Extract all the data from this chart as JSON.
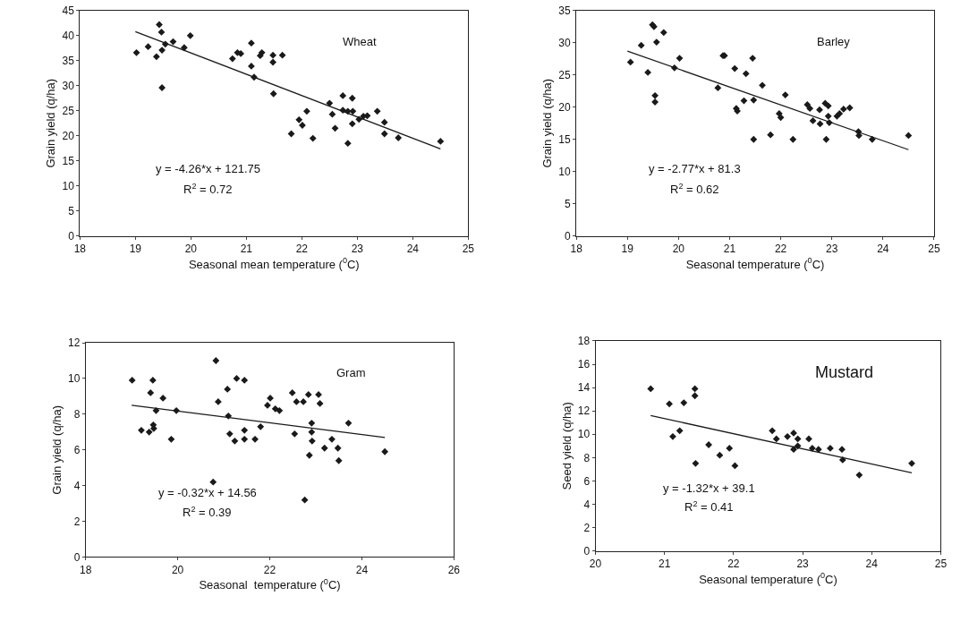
{
  "chart_data": [
    {
      "type": "scatter",
      "xlabel": "Seasonal mean temperature ($^{0}$C)",
      "ylabel": "Grain yield (q/ha)",
      "annotations": [
        "Wheat",
        "y = -4.26*x + 121.75",
        "R$^{2}$ = 0.72"
      ],
      "xlim": [
        18,
        25
      ],
      "xticks": [
        18,
        19,
        20,
        21,
        22,
        23,
        24,
        25
      ],
      "ylim": [
        0,
        45
      ],
      "yticks": [
        0,
        5,
        10,
        15,
        20,
        25,
        30,
        35,
        40,
        45
      ],
      "series": [
        {
          "marker": "diamond",
          "color": "#1a1a1a",
          "x": [
            19.02,
            19.23,
            19.38,
            19.43,
            19.47,
            19.48,
            19.48,
            19.54,
            19.68,
            19.88,
            19.99,
            20.75,
            20.84,
            20.9,
            21.09,
            21.09,
            21.14,
            21.25,
            21.28,
            21.48,
            21.48,
            21.49,
            21.65,
            21.81,
            21.95,
            22.01,
            22.09,
            22.2,
            22.5,
            22.55,
            22.6,
            22.74,
            22.74,
            22.83,
            22.83,
            22.91,
            22.91,
            22.92,
            23.03,
            23.11,
            23.18,
            23.36,
            23.49,
            23.49,
            23.74,
            24.5
          ],
          "values": [
            36.6,
            37.8,
            35.8,
            42.2,
            40.7,
            37.1,
            29.6,
            38.3,
            38.8,
            37.6,
            40.0,
            35.4,
            36.6,
            36.4,
            38.5,
            33.9,
            31.7,
            36.0,
            36.6,
            36.1,
            34.7,
            28.4,
            36.1,
            20.4,
            23.2,
            22.1,
            24.9,
            19.5,
            26.5,
            24.3,
            21.5,
            28.0,
            25.1,
            18.5,
            24.9,
            27.5,
            22.4,
            24.9,
            23.3,
            23.9,
            24.0,
            24.9,
            22.7,
            20.4,
            19.6,
            18.9
          ]
        },
        {
          "type": "line",
          "color": "#1a1a1a",
          "x": [
            19,
            24.5
          ],
          "values": [
            40.8,
            17.4
          ]
        }
      ]
    },
    {
      "type": "scatter",
      "xlabel": "Seasonal temperature ($^{0}$C)",
      "ylabel": "Grain yield (q/ha)",
      "annotations": [
        "Barley",
        "y = -2.77*x + 81.3",
        "R$^{2}$ = 0.62"
      ],
      "xlim": [
        18,
        25
      ],
      "xticks": [
        18,
        19,
        20,
        21,
        22,
        23,
        24,
        25
      ],
      "ylim": [
        0,
        35
      ],
      "yticks": [
        0,
        5,
        10,
        15,
        20,
        25,
        30,
        35
      ],
      "series": [
        {
          "marker": "diamond",
          "color": "#1a1a1a",
          "x": [
            19.06,
            19.27,
            19.4,
            19.49,
            19.52,
            19.54,
            19.54,
            19.57,
            19.71,
            19.92,
            20.02,
            20.77,
            20.87,
            20.9,
            21.1,
            21.13,
            21.15,
            21.28,
            21.32,
            21.45,
            21.47,
            21.47,
            21.64,
            21.8,
            21.97,
            22.0,
            22.09,
            22.24,
            22.52,
            22.57,
            22.63,
            22.76,
            22.77,
            22.87,
            22.89,
            22.93,
            22.93,
            22.95,
            23.1,
            23.15,
            23.23,
            23.35,
            23.52,
            23.53,
            23.79,
            24.5
          ],
          "values": [
            27.0,
            29.6,
            25.4,
            32.8,
            32.5,
            21.8,
            20.8,
            30.1,
            31.6,
            26.1,
            27.6,
            23.0,
            28.0,
            28.0,
            26.0,
            19.8,
            19.4,
            21.0,
            25.2,
            27.6,
            21.1,
            15.0,
            23.4,
            15.7,
            19.0,
            18.4,
            21.9,
            15.0,
            20.4,
            19.8,
            17.9,
            19.6,
            17.4,
            20.6,
            15.0,
            20.2,
            18.6,
            17.6,
            18.6,
            19.0,
            19.7,
            19.9,
            16.2,
            15.6,
            15.0,
            15.6
          ]
        },
        {
          "type": "line",
          "color": "#1a1a1a",
          "x": [
            19,
            24.5
          ],
          "values": [
            28.7,
            13.4
          ]
        }
      ]
    },
    {
      "type": "scatter",
      "xlabel": "Seasonal  temperature ($^{0}$C)",
      "ylabel": "Grain yield (q/ha)",
      "annotations": [
        "Gram",
        "y = -0.32*x + 14.56",
        "R$^{2}$ = 0.39"
      ],
      "xlim": [
        18,
        26
      ],
      "xticks": [
        18,
        20,
        22,
        24,
        26
      ],
      "ylim": [
        0,
        12
      ],
      "yticks": [
        0,
        2,
        4,
        6,
        8,
        10,
        12
      ],
      "series": [
        {
          "marker": "diamond",
          "color": "#1a1a1a",
          "x": [
            19.01,
            19.21,
            19.38,
            19.41,
            19.46,
            19.47,
            19.48,
            19.53,
            19.68,
            19.86,
            19.97,
            20.77,
            20.83,
            20.88,
            21.08,
            21.1,
            21.13,
            21.24,
            21.28,
            21.45,
            21.45,
            21.45,
            21.68,
            21.8,
            21.95,
            22.01,
            22.12,
            22.21,
            22.49,
            22.54,
            22.58,
            22.73,
            22.76,
            22.84,
            22.86,
            22.91,
            22.91,
            22.92,
            23.06,
            23.09,
            23.19,
            23.35,
            23.48,
            23.5,
            23.71,
            24.5
          ],
          "values": [
            9.9,
            7.1,
            7.0,
            9.2,
            9.9,
            7.4,
            7.2,
            8.2,
            8.9,
            6.6,
            8.2,
            4.2,
            11.0,
            8.7,
            9.4,
            7.9,
            6.9,
            6.5,
            10.0,
            7.1,
            6.6,
            9.9,
            6.6,
            7.3,
            8.5,
            8.9,
            8.3,
            8.2,
            9.2,
            6.9,
            8.7,
            8.7,
            3.2,
            9.1,
            5.7,
            7.5,
            7.0,
            6.5,
            9.1,
            8.6,
            6.1,
            6.6,
            6.1,
            5.4,
            7.5,
            5.9
          ]
        },
        {
          "type": "line",
          "color": "#1a1a1a",
          "x": [
            19,
            24.5
          ],
          "values": [
            8.5,
            6.7
          ]
        }
      ]
    },
    {
      "type": "scatter",
      "xlabel": "Seasonal temperature ($^{0}$C)",
      "ylabel": "Seed yield (q/ha)",
      "annotations": [
        "Mustard",
        "y = -1.32*x + 39.1",
        "R$^{2}$ = 0.41"
      ],
      "xlim": [
        20,
        25
      ],
      "xticks": [
        20,
        21,
        22,
        23,
        24,
        25
      ],
      "ylim": [
        0,
        18
      ],
      "yticks": [
        0,
        2,
        4,
        6,
        8,
        10,
        12,
        14,
        16,
        18
      ],
      "series": [
        {
          "marker": "diamond",
          "color": "#1a1a1a",
          "x": [
            20.8,
            21.07,
            21.12,
            21.22,
            21.28,
            21.44,
            21.44,
            21.45,
            21.64,
            21.8,
            21.94,
            22.02,
            22.56,
            22.62,
            22.78,
            22.87,
            22.87,
            22.93,
            22.93,
            23.09,
            23.14,
            23.23,
            23.4,
            23.57,
            23.58,
            23.82,
            24.58
          ],
          "values": [
            13.9,
            12.6,
            9.8,
            10.3,
            12.7,
            13.9,
            13.3,
            7.5,
            9.1,
            8.2,
            8.8,
            7.3,
            10.3,
            9.6,
            9.8,
            10.1,
            8.7,
            9.6,
            9.0,
            9.6,
            8.8,
            8.7,
            8.8,
            8.7,
            7.8,
            6.5,
            7.5
          ]
        },
        {
          "type": "line",
          "color": "#1a1a1a",
          "x": [
            20.8,
            24.58
          ],
          "values": [
            11.6,
            6.7
          ]
        }
      ]
    }
  ]
}
